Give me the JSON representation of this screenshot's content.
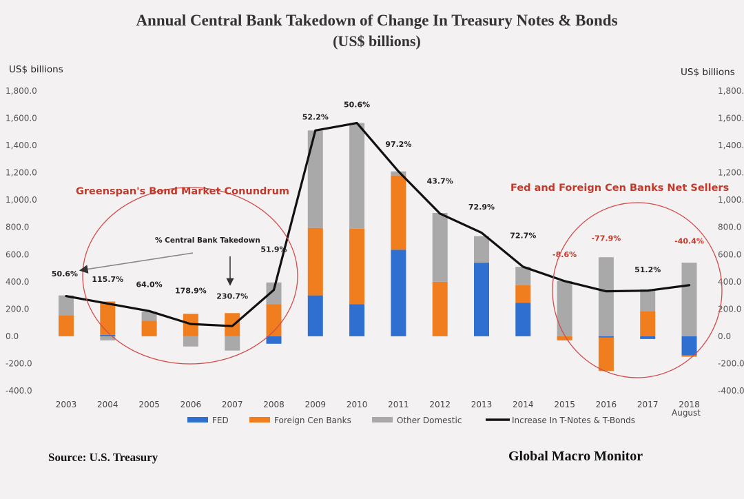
{
  "chart_data": {
    "type": "bar",
    "title": "Annual Central Bank Takedown of Change In Treasury Notes & Bonds",
    "subtitle": "(US$ billions)",
    "ylabel_left": "US$ billions",
    "ylabel_right": "US$ billions",
    "ylim": [
      -400,
      1800
    ],
    "yticks": [
      "1,800.0",
      "1,600.0",
      "1,400.0",
      "1,200.0",
      "1,000.0",
      "800.0",
      "600.0",
      "400.0",
      "200.0",
      "0.0",
      "-200.0",
      "-400.0"
    ],
    "ytick_values": [
      1800,
      1600,
      1400,
      1200,
      1000,
      800,
      600,
      400,
      200,
      0,
      -200,
      -400
    ],
    "categories": [
      "2003",
      "2004",
      "2005",
      "2006",
      "2007",
      "2008",
      "2009",
      "2010",
      "2011",
      "2012",
      "2013",
      "2014",
      "2015",
      "2016",
      "2017",
      "2018"
    ],
    "last_category_sublabel": "August",
    "stacked": true,
    "series": [
      {
        "name": "FED",
        "color": "#2f6fd0",
        "values": [
          0,
          10,
          0,
          0,
          0,
          -55,
          300,
          235,
          635,
          0,
          540,
          245,
          0,
          -10,
          -20,
          -140
        ]
      },
      {
        "name": "Foreign Cen Banks",
        "color": "#f07d1e",
        "values": [
          155,
          245,
          115,
          165,
          170,
          235,
          495,
          555,
          545,
          400,
          0,
          130,
          -30,
          -245,
          185,
          -10
        ]
      },
      {
        "name": "Other Domestic",
        "color": "#a9a9a9",
        "values": [
          145,
          -30,
          65,
          -75,
          -105,
          160,
          715,
          775,
          30,
          505,
          195,
          135,
          405,
          580,
          160,
          540
        ]
      }
    ],
    "line": {
      "name": "Increase In T-Notes & T-Bonds",
      "color": "#111111",
      "values": [
        295,
        240,
        185,
        90,
        75,
        340,
        1510,
        1565,
        1210,
        900,
        760,
        510,
        405,
        330,
        335,
        375
      ]
    },
    "pct_labels": [
      "50.6%",
      "115.7%",
      "64.0%",
      "178.9%",
      "230.7%",
      "51.9%",
      "52.2%",
      "50.6%",
      "97.2%",
      "43.7%",
      "72.9%",
      "72.7%",
      "-8.6%",
      "-77.9%",
      "51.2%",
      "-40.4%"
    ],
    "pct_label_heights": [
      440,
      400,
      360,
      315,
      275,
      620,
      1590,
      1680,
      1390,
      1120,
      930,
      720,
      580,
      700,
      470,
      680
    ],
    "pct_label_red": [
      false,
      false,
      false,
      false,
      false,
      false,
      false,
      false,
      false,
      false,
      false,
      false,
      true,
      true,
      false,
      true
    ],
    "annotations": {
      "left_title": "Greenspan's Bond Market Conundrum",
      "right_title": "Fed and Foreign Cen Banks Net Sellers",
      "pct_caption": "% Central Bank Takedown"
    },
    "legend_position": "bottom",
    "grid": false
  },
  "footer": {
    "source": "Source:  U.S. Treasury",
    "brand": "Global Macro Monitor"
  },
  "colors": {
    "annotation_red": "#c0392b"
  }
}
